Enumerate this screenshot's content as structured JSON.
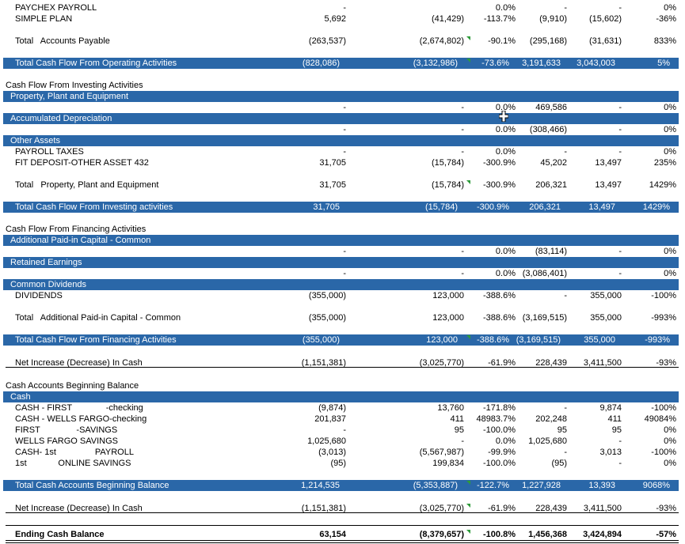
{
  "rows": [
    {
      "label": "PAYCHEX PAYROLL",
      "v": [
        "-",
        "",
        "0.0%",
        "-",
        "-",
        "0%"
      ]
    },
    {
      "label": "SIMPLE PLAN",
      "v": [
        "5,692",
        "(41,429)",
        "-113.7%",
        "(9,910)",
        "(15,602)",
        "-36%"
      ]
    },
    {
      "label": "Total   Accounts Payable",
      "v": [
        "(263,537)",
        "(2,674,802)",
        "-90.1%",
        "(295,168)",
        "(31,631)",
        "833%"
      ]
    },
    {
      "label": "Total Cash Flow From Operating Activities",
      "v": [
        "(828,086)",
        "(3,132,986)",
        "-73.6%",
        "3,191,633",
        "3,043,003",
        "5%"
      ]
    },
    {
      "label": "Cash Flow From Investing Activities"
    },
    {
      "label": "Property, Plant and Equipment"
    },
    {
      "label": "",
      "v": [
        "-",
        "-",
        "0.0%",
        "469,586",
        "-",
        "0%"
      ]
    },
    {
      "label": "Accumulated Depreciation"
    },
    {
      "label": "",
      "v": [
        "-",
        "-",
        "0.0%",
        "(308,466)",
        "-",
        "0%"
      ]
    },
    {
      "label": "Other Assets"
    },
    {
      "label": "PAYROLL TAXES",
      "v": [
        "-",
        "-",
        "0.0%",
        "-",
        "-",
        "0%"
      ]
    },
    {
      "label": "FIT DEPOSIT-OTHER ASSET 432",
      "v": [
        "31,705",
        "(15,784)",
        "-300.9%",
        "45,202",
        "13,497",
        "235%"
      ]
    },
    {
      "label": "Total   Property, Plant and Equipment",
      "v": [
        "31,705",
        "(15,784)",
        "-300.9%",
        "206,321",
        "13,497",
        "1429%"
      ]
    },
    {
      "label": "Total Cash Flow From Investing activities",
      "v": [
        "31,705",
        "(15,784)",
        "-300.9%",
        "206,321",
        "13,497",
        "1429%"
      ]
    },
    {
      "label": "Cash Flow From Financing Activities"
    },
    {
      "label": "Additional Paid-in Capital - Common"
    },
    {
      "label": "",
      "v": [
        "-",
        "-",
        "0.0%",
        "(83,114)",
        "-",
        "0%"
      ]
    },
    {
      "label": "Retained Earnings"
    },
    {
      "label": "",
      "v": [
        "-",
        "-",
        "0.0%",
        "(3,086,401)",
        "-",
        "0%"
      ]
    },
    {
      "label": "Common Dividends"
    },
    {
      "label": "DIVIDENDS",
      "v": [
        "(355,000)",
        "123,000",
        "-388.6%",
        "-",
        "355,000",
        "-100%"
      ]
    },
    {
      "label": "Total   Additional Paid-in Capital - Common",
      "v": [
        "(355,000)",
        "123,000",
        "-388.6%",
        "(3,169,515)",
        "355,000",
        "-993%"
      ]
    },
    {
      "label": "Total Cash Flow From Financing Activities",
      "v": [
        "(355,000)",
        "123,000",
        "-388.6%",
        "(3,169,515)",
        "355,000",
        "-993%"
      ]
    },
    {
      "label": "Net Increase (Decrease) In Cash",
      "v": [
        "(1,151,381)",
        "(3,025,770)",
        "-61.9%",
        "228,439",
        "3,411,500",
        "-93%"
      ]
    },
    {
      "label": "Cash Accounts Beginning Balance"
    },
    {
      "label": "Cash"
    },
    {
      "label": "CASH - FIRST              -checking",
      "v": [
        "(9,874)",
        "13,760",
        "-171.8%",
        "-",
        "9,874",
        "-100%"
      ]
    },
    {
      "label": "CASH - WELLS FARGO-checking",
      "v": [
        "201,837",
        "411",
        "48983.7%",
        "202,248",
        "411",
        "49084%"
      ]
    },
    {
      "label": "FIRST               -SAVINGS",
      "v": [
        "-",
        "95",
        "-100.0%",
        "95",
        "95",
        "0%"
      ]
    },
    {
      "label": "WELLS FARGO SAVINGS",
      "v": [
        "1,025,680",
        "-",
        "0.0%",
        "1,025,680",
        "-",
        "0%"
      ]
    },
    {
      "label": "CASH- 1st                PAYROLL",
      "v": [
        "(3,013)",
        "(5,567,987)",
        "-99.9%",
        "-",
        "3,013",
        "-100%"
      ]
    },
    {
      "label": "1st             ONLINE SAVINGS",
      "v": [
        "(95)",
        "199,834",
        "-100.0%",
        "(95)",
        "-",
        "0%"
      ]
    },
    {
      "label": "Total Cash Accounts Beginning Balance",
      "v": [
        "1,214,535",
        "(5,353,887)",
        "-122.7%",
        "1,227,928",
        "13,393",
        "9068%"
      ]
    },
    {
      "label": "Net Increase (Decrease) In Cash",
      "v": [
        "(1,151,381)",
        "(3,025,770)",
        "-61.9%",
        "228,439",
        "3,411,500",
        "-93%"
      ]
    },
    {
      "label": "Ending Cash Balance",
      "v": [
        "63,154",
        "(8,379,657)",
        "-100.8%",
        "1,456,368",
        "3,424,894",
        "-57%"
      ]
    }
  ],
  "colors": {
    "band": "#2a67a8",
    "indicator": "#2e9b3a"
  }
}
